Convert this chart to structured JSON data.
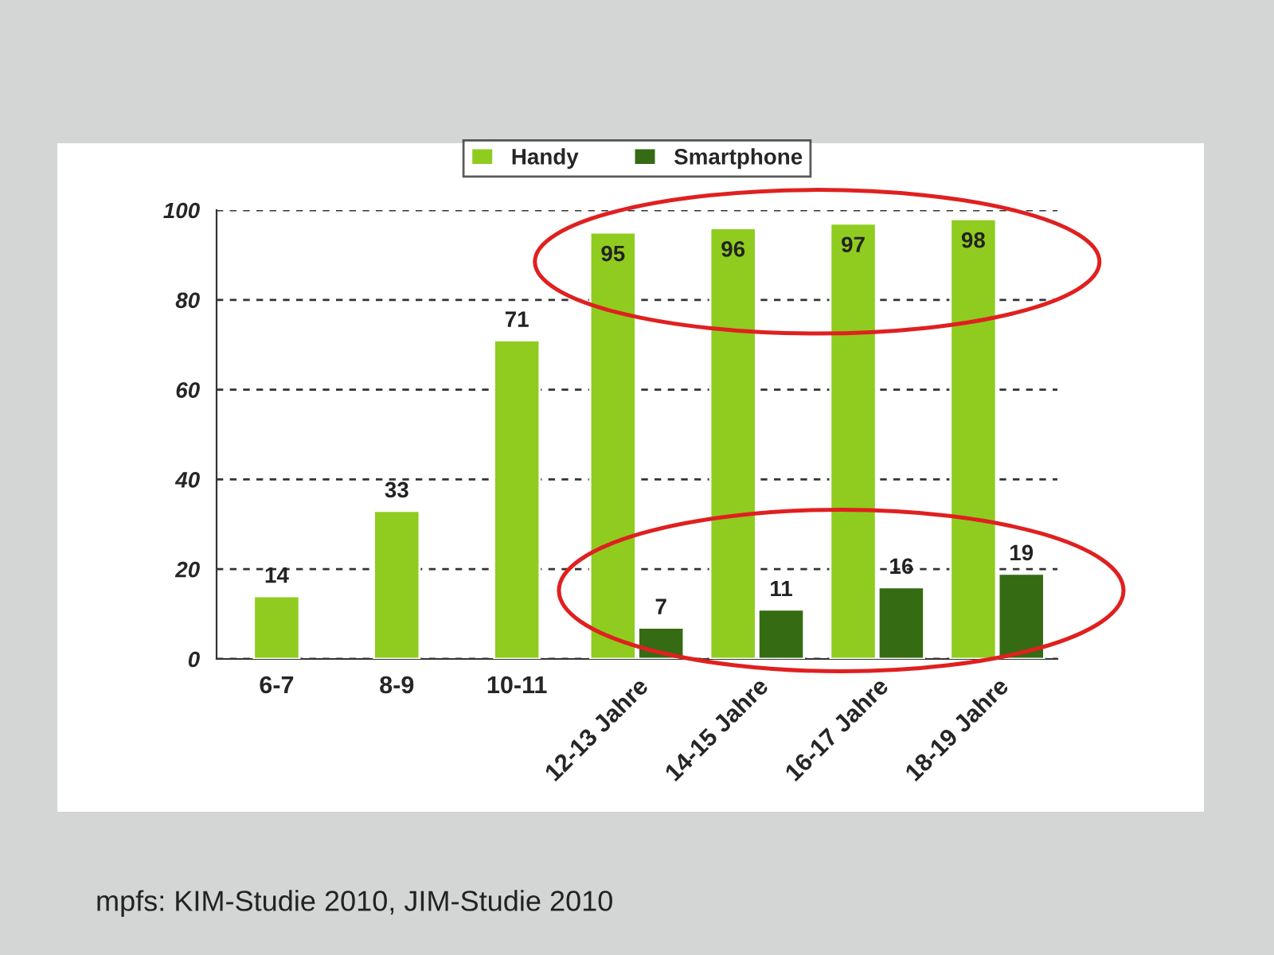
{
  "chart_data": {
    "type": "bar",
    "categories": [
      "6-7",
      "8-9",
      "10-11",
      "12-13 Jahre",
      "14-15 Jahre",
      "16-17 Jahre",
      "18-19 Jahre"
    ],
    "series": [
      {
        "name": "Handy",
        "color": "#8fcc1f",
        "values": [
          14,
          33,
          71,
          95,
          96,
          97,
          98
        ]
      },
      {
        "name": "Smartphone",
        "color": "#356b12",
        "values": [
          null,
          null,
          null,
          7,
          11,
          16,
          19
        ]
      }
    ],
    "ylim": [
      0,
      100
    ],
    "yticks": [
      0,
      20,
      40,
      60,
      80,
      100
    ],
    "grid": "y",
    "legend": "top",
    "data_labels": true,
    "annotations": [
      "mpfs: KIM-Studie 2010, JIM-Studie 2010"
    ]
  }
}
